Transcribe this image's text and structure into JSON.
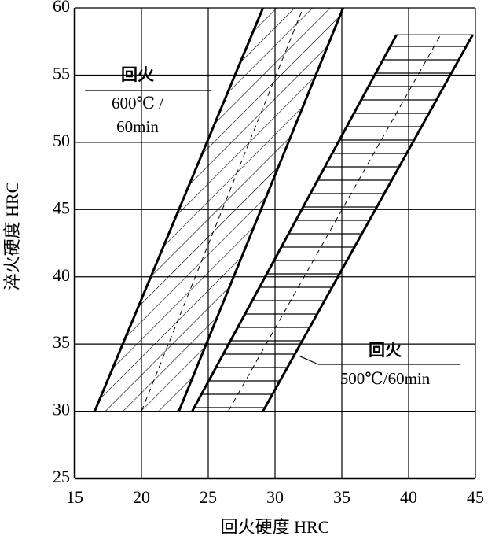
{
  "chart_data": {
    "type": "band",
    "x_label": "回火硬度 HRC",
    "y_label": "淬火硬度 HRC",
    "xlim": [
      15,
      45
    ],
    "ylim": [
      25,
      60
    ],
    "xticks": [
      15,
      20,
      25,
      30,
      35,
      40,
      45
    ],
    "yticks": [
      25,
      30,
      35,
      40,
      45,
      50,
      55,
      60
    ],
    "grid": true,
    "color": "#000000",
    "bands": [
      {
        "hatch": "diagonal",
        "lines": [
          "回火",
          "600℃ /",
          "60min"
        ],
        "left": {
          "x": [
            16.5,
            29.1
          ],
          "y": [
            30,
            60
          ]
        },
        "center": {
          "x": [
            20,
            32.1
          ],
          "y": [
            30,
            60
          ]
        },
        "right": {
          "x": [
            22.8,
            35.1
          ],
          "y": [
            30,
            60
          ]
        }
      },
      {
        "hatch": "horizontal",
        "lines": [
          "回火",
          "500℃/60min"
        ],
        "left": {
          "x": [
            23.8,
            39.1
          ],
          "y": [
            30,
            58
          ]
        },
        "center": {
          "x": [
            26.5,
            42.4
          ],
          "y": [
            30,
            58
          ]
        },
        "right": {
          "x": [
            29.1,
            44.8
          ],
          "y": [
            30,
            58
          ]
        }
      }
    ]
  }
}
